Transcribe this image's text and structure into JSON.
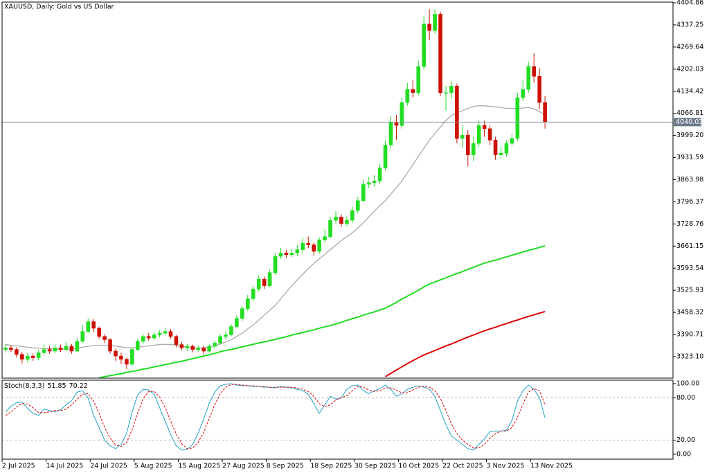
{
  "chart_data": [
    {
      "type": "candlestick",
      "title": "XAUUSD, Daily:  Gold vs US Dollar",
      "categories": [
        "2 Jul 2025",
        null,
        null,
        null,
        null,
        null,
        null,
        null,
        "14 Jul 2025",
        null,
        null,
        null,
        null,
        null,
        null,
        null,
        "24 Jul 2025",
        null,
        null,
        null,
        null,
        null,
        null,
        null,
        "5 Aug 2025",
        null,
        null,
        null,
        null,
        null,
        null,
        null,
        "15 Aug 2025",
        null,
        null,
        null,
        null,
        null,
        null,
        null,
        "27 Aug 2025",
        null,
        null,
        null,
        null,
        null,
        null,
        null,
        "8 Sep 2025",
        null,
        null,
        null,
        null,
        null,
        null,
        null,
        "18 Sep 2025",
        null,
        null,
        null,
        null,
        null,
        null,
        null,
        "30 Sep 2025",
        null,
        null,
        null,
        null,
        null,
        null,
        null,
        "10 Oct 2025",
        null,
        null,
        null,
        null,
        null,
        null,
        null,
        "22 Oct 2025",
        null,
        null,
        null,
        null,
        null,
        null,
        null,
        "3 Nov 2025",
        null,
        null,
        null,
        null,
        null,
        null,
        null,
        "13 Nov 2025",
        null,
        null
      ],
      "open": [
        3345,
        3350,
        3345,
        3330,
        3315,
        3325,
        3320,
        3335,
        3345,
        3340,
        3350,
        3345,
        3355,
        3340,
        3370,
        3400,
        3430,
        3410,
        3385,
        3375,
        3340,
        3325,
        3315,
        3300,
        3345,
        3370,
        3385,
        3380,
        3390,
        3395,
        3400,
        3385,
        3360,
        3350,
        3355,
        3345,
        3350,
        3340,
        3355,
        3365,
        3385,
        3390,
        3415,
        3440,
        3470,
        3500,
        3530,
        3560,
        3540,
        3580,
        3630,
        3640,
        3635,
        3640,
        3650,
        3670,
        3665,
        3645,
        3680,
        3690,
        3740,
        3750,
        3730,
        3740,
        3770,
        3800,
        3850,
        3855,
        3860,
        3900,
        3970,
        4040,
        4030,
        4100,
        4140,
        4130,
        4210,
        4340,
        4320,
        4370,
        4130,
        4130,
        4150,
        3990,
        4000,
        3940,
        3975,
        4030,
        4020,
        3985,
        3940,
        3945,
        3975,
        3990,
        4115,
        4140,
        4210,
        4180,
        4100
      ],
      "high": [
        3362,
        3358,
        3352,
        3338,
        3334,
        3333,
        3344,
        3360,
        3356,
        3362,
        3360,
        3368,
        3362,
        3380,
        3420,
        3440,
        3438,
        3415,
        3392,
        3380,
        3348,
        3335,
        3320,
        3352,
        3378,
        3392,
        3395,
        3398,
        3405,
        3412,
        3408,
        3390,
        3368,
        3362,
        3360,
        3358,
        3356,
        3362,
        3372,
        3392,
        3400,
        3422,
        3450,
        3478,
        3512,
        3540,
        3572,
        3568,
        3590,
        3640,
        3655,
        3650,
        3652,
        3665,
        3685,
        3690,
        3672,
        3688,
        3712,
        3750,
        3768,
        3758,
        3752,
        3782,
        3812,
        3865,
        3872,
        3878,
        3912,
        3985,
        4060,
        4062,
        4115,
        4160,
        4170,
        4228,
        4365,
        4385,
        4385,
        4378,
        4150,
        4165,
        4158,
        4030,
        4015,
        3995,
        4045,
        4045,
        4030,
        3995,
        3965,
        3985,
        4005,
        4130,
        4170,
        4225,
        4250,
        4205,
        4120
      ],
      "low": [
        3335,
        3338,
        3320,
        3302,
        3306,
        3310,
        3312,
        3328,
        3332,
        3334,
        3338,
        3340,
        3332,
        3336,
        3365,
        3395,
        3398,
        3378,
        3365,
        3332,
        3310,
        3300,
        3285,
        3295,
        3340,
        3362,
        3372,
        3375,
        3382,
        3388,
        3378,
        3352,
        3342,
        3340,
        3336,
        3338,
        3330,
        3334,
        3348,
        3360,
        3375,
        3385,
        3410,
        3432,
        3462,
        3492,
        3522,
        3530,
        3535,
        3572,
        3622,
        3625,
        3628,
        3630,
        3642,
        3655,
        3632,
        3638,
        3672,
        3685,
        3730,
        3720,
        3722,
        3732,
        3762,
        3795,
        3838,
        3842,
        3850,
        3892,
        3960,
        3985,
        4020,
        4090,
        4115,
        4122,
        4200,
        4290,
        4310,
        4120,
        4075,
        4110,
        3975,
        3960,
        3905,
        3920,
        3965,
        3995,
        3970,
        3925,
        3930,
        3935,
        3968,
        3982,
        4105,
        4130,
        4160,
        4080,
        4020
      ],
      "close": [
        3350,
        3345,
        3330,
        3315,
        3325,
        3320,
        3335,
        3345,
        3340,
        3350,
        3345,
        3355,
        3340,
        3370,
        3400,
        3430,
        3410,
        3385,
        3375,
        3340,
        3325,
        3315,
        3300,
        3345,
        3370,
        3385,
        3380,
        3390,
        3395,
        3400,
        3385,
        3360,
        3350,
        3355,
        3345,
        3350,
        3340,
        3355,
        3365,
        3385,
        3390,
        3415,
        3440,
        3470,
        3500,
        3530,
        3560,
        3540,
        3580,
        3630,
        3640,
        3635,
        3640,
        3650,
        3670,
        3665,
        3645,
        3680,
        3690,
        3740,
        3750,
        3730,
        3740,
        3770,
        3800,
        3850,
        3855,
        3860,
        3900,
        3970,
        4040,
        4030,
        4100,
        4140,
        4130,
        4210,
        4340,
        4320,
        4370,
        4130,
        4130,
        4150,
        3990,
        4000,
        3940,
        3975,
        4030,
        4020,
        3985,
        3940,
        3945,
        3975,
        3990,
        4115,
        4140,
        4210,
        4180,
        4100,
        4040.03
      ],
      "up_color": "#22dd22",
      "down_color": "#cc1100",
      "lines": [
        {
          "color": "#aaaaaa",
          "width": 1.3,
          "values": [
            3360,
            3358,
            3356,
            3354,
            3352,
            3350,
            3349,
            3348,
            3347,
            3347,
            3346,
            3346,
            3347,
            3349,
            3352,
            3355,
            3357,
            3358,
            3358,
            3357,
            3355,
            3353,
            3350,
            3350,
            3352,
            3354,
            3356,
            3358,
            3360,
            3361,
            3360,
            3358,
            3355,
            3352,
            3350,
            3349,
            3350,
            3352,
            3356,
            3362,
            3368,
            3375,
            3385,
            3395,
            3408,
            3420,
            3435,
            3450,
            3465,
            3480,
            3500,
            3520,
            3540,
            3558,
            3575,
            3592,
            3608,
            3622,
            3636,
            3650,
            3664,
            3678,
            3690,
            3702,
            3716,
            3732,
            3750,
            3768,
            3785,
            3800,
            3820,
            3840,
            3860,
            3885,
            3910,
            3935,
            3960,
            3985,
            4005,
            4025,
            4045,
            4060,
            4068,
            4075,
            4082,
            4088,
            4090,
            4090,
            4088,
            4087,
            4085,
            4082,
            4082,
            4082,
            4083,
            4085,
            4080,
            4072,
            4062
          ]
        },
        {
          "color": "#22dd22",
          "width": 2,
          "values": [
            null,
            null,
            null,
            null,
            null,
            null,
            null,
            null,
            null,
            null,
            null,
            null,
            null,
            null,
            null,
            null,
            null,
            3258,
            3262,
            3265,
            3268,
            3271,
            3275,
            3278,
            3281,
            3285,
            3288,
            3292,
            3295,
            3299,
            3302,
            3306,
            3309,
            3313,
            3317,
            3321,
            3325,
            3329,
            3333,
            3338,
            3342,
            3345,
            3349,
            3353,
            3357,
            3361,
            3365,
            3368,
            3372,
            3376,
            3380,
            3384,
            3389,
            3393,
            3397,
            3401,
            3405,
            3410,
            3414,
            3418,
            3423,
            3428,
            3434,
            3439,
            3444,
            3450,
            3455,
            3460,
            3466,
            3471,
            3480,
            3489,
            3499,
            3508,
            3517,
            3526,
            3536,
            3545,
            3551,
            3558,
            3564,
            3571,
            3577,
            3583,
            3590,
            3596,
            3603,
            3609,
            3614,
            3618,
            3623,
            3628,
            3633,
            3638,
            3643,
            3648,
            3652,
            3657,
            3662
          ]
        },
        {
          "color": "#dd0000",
          "width": 2,
          "values": [
            null,
            null,
            null,
            null,
            null,
            null,
            null,
            null,
            null,
            null,
            null,
            null,
            null,
            null,
            null,
            null,
            null,
            null,
            null,
            null,
            null,
            null,
            null,
            null,
            null,
            null,
            null,
            null,
            null,
            null,
            null,
            null,
            null,
            null,
            null,
            null,
            null,
            null,
            null,
            null,
            null,
            null,
            null,
            null,
            null,
            null,
            null,
            null,
            null,
            null,
            null,
            null,
            null,
            null,
            null,
            null,
            null,
            null,
            null,
            null,
            null,
            null,
            null,
            null,
            null,
            null,
            null,
            null,
            null,
            3262,
            3272,
            3282,
            3292,
            3302,
            3311,
            3320,
            3328,
            3335,
            3342,
            3349,
            3356,
            3362,
            3369,
            3376,
            3383,
            3389,
            3396,
            3402,
            3408,
            3413,
            3419,
            3424,
            3430,
            3435,
            3441,
            3446,
            3451,
            3456,
            3461
          ]
        }
      ],
      "price_line_color": "#8899aa",
      "price_label_bg": "#6c7a89",
      "ylim": [
        3257.48,
        4406.98
      ],
      "yticks": [
        4404.86,
        4337.25,
        4269.64,
        4202.03,
        4134.42,
        4066.81,
        {
          "value": 3999.2,
          "label": "3999.20"
        },
        3931.59,
        3863.98,
        3796.37,
        3728.76,
        3661.15,
        3593.54,
        3525.93,
        3458.32,
        3390.71,
        {
          "value": 3323.1,
          "label": "3323.10"
        }
      ]
    },
    {
      "type": "line",
      "title": "Stoch(8,3,3)",
      "series": [
        {
          "color": "#1fa0c8",
          "dashed": false,
          "values": [
            60,
            68,
            73,
            74,
            65,
            58,
            55,
            64,
            62,
            60,
            63,
            70,
            76,
            88,
            90,
            80,
            55,
            38,
            20,
            12,
            8,
            14,
            30,
            60,
            84,
            92,
            91,
            85,
            66,
            47,
            28,
            12,
            6,
            7,
            14,
            30,
            50,
            72,
            88,
            97,
            99,
            100,
            98,
            97,
            97,
            96,
            96,
            95,
            95,
            94,
            96,
            95,
            94,
            92,
            90,
            85,
            72,
            58,
            70,
            82,
            78,
            80,
            92,
            97,
            98,
            90,
            86,
            90,
            93,
            98,
            92,
            82,
            86,
            92,
            95,
            97,
            95,
            92,
            82,
            62,
            42,
            26,
            20,
            14,
            8,
            6,
            14,
            22,
            32,
            33,
            33,
            34,
            48,
            75,
            90,
            98,
            92,
            80,
            51.85
          ]
        },
        {
          "color": "#e00000",
          "dashed": true,
          "values": [
            55,
            60,
            67,
            72,
            71,
            66,
            59,
            59,
            60,
            62,
            62,
            64,
            70,
            78,
            85,
            86,
            75,
            58,
            38,
            23,
            13,
            11,
            17,
            35,
            58,
            79,
            89,
            89,
            81,
            66,
            47,
            29,
            15,
            8,
            9,
            17,
            31,
            51,
            70,
            86,
            95,
            99,
            99,
            98,
            97,
            97,
            96,
            96,
            95,
            95,
            95,
            95,
            95,
            94,
            92,
            89,
            82,
            72,
            67,
            70,
            77,
            80,
            83,
            90,
            96,
            95,
            91,
            89,
            90,
            94,
            94,
            91,
            87,
            87,
            91,
            95,
            96,
            95,
            90,
            79,
            62,
            43,
            29,
            20,
            14,
            9,
            9,
            14,
            23,
            29,
            33,
            33,
            38,
            52,
            71,
            88,
            93,
            90,
            70.22
          ]
        }
      ],
      "levels": [
        80,
        20
      ],
      "level_color": "#b8b8b8",
      "ylim": [
        -6.86,
        104.9
      ],
      "yticks": [
        {
          "value": 100,
          "label": "100.00"
        },
        {
          "value": 80,
          "label": "80.00"
        },
        {
          "value": 20,
          "label": "20.00"
        },
        {
          "value": 0,
          "label": "0.00"
        }
      ]
    }
  ]
}
